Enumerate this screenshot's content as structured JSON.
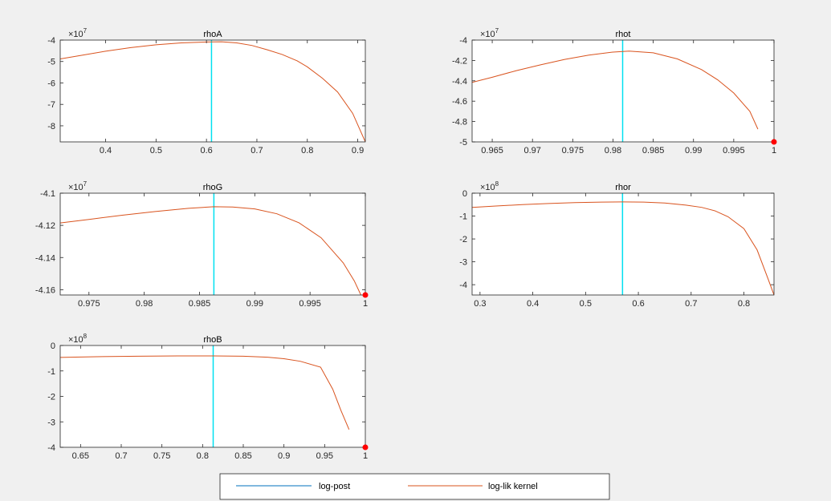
{
  "chart_data": [
    {
      "type": "line",
      "title": "rhoA",
      "y_exponent": "7",
      "xlim": [
        0.31,
        0.915
      ],
      "ylim": [
        -8.75,
        -4
      ],
      "xticks": [
        0.4,
        0.5,
        0.6,
        0.7,
        0.8,
        0.9
      ],
      "xtick_labels": [
        "0.4",
        "0.5",
        "0.6",
        "0.7",
        "0.8",
        "0.9"
      ],
      "yticks": [
        -8,
        -7,
        -6,
        -5,
        -4
      ],
      "ytick_labels": [
        "-8",
        "-7",
        "-6",
        "-5",
        "-4"
      ],
      "vline_x": 0.61,
      "series": [
        {
          "color": "#00e0f0",
          "x": [
            0.61,
            0.61
          ],
          "y": [
            -8.75,
            -4
          ]
        },
        {
          "color": "#d9531e",
          "x": [
            0.31,
            0.35,
            0.4,
            0.45,
            0.5,
            0.55,
            0.6,
            0.63,
            0.66,
            0.69,
            0.72,
            0.75,
            0.78,
            0.8,
            0.83,
            0.86,
            0.89,
            0.915
          ],
          "y": [
            -4.88,
            -4.72,
            -4.52,
            -4.35,
            -4.22,
            -4.13,
            -4.09,
            -4.08,
            -4.13,
            -4.25,
            -4.45,
            -4.67,
            -4.97,
            -5.25,
            -5.78,
            -6.42,
            -7.42,
            -8.75
          ]
        }
      ]
    },
    {
      "type": "line",
      "title": "rhot",
      "y_exponent": "7",
      "xlim": [
        0.9625,
        1.0
      ],
      "ylim": [
        -5,
        -4
      ],
      "xticks": [
        0.965,
        0.97,
        0.975,
        0.98,
        0.985,
        0.99,
        0.995,
        1.0
      ],
      "xtick_labels": [
        "0.965",
        "0.97",
        "0.975",
        "0.98",
        "0.985",
        "0.99",
        "0.995",
        "1"
      ],
      "yticks": [
        -5,
        -4.8,
        -4.6,
        -4.4,
        -4.2,
        -4
      ],
      "ytick_labels": [
        "-5",
        "-4.8",
        "-4.6",
        "-4.4",
        "-4.2",
        "-4"
      ],
      "vline_x": 0.9812,
      "marker": {
        "x": 1.0,
        "y": -5,
        "color": "#ff0000"
      },
      "series": [
        {
          "color": "#00e0f0",
          "x": [
            0.9812,
            0.9812
          ],
          "y": [
            -5,
            -4
          ]
        },
        {
          "color": "#d9531e",
          "x": [
            0.9625,
            0.965,
            0.968,
            0.971,
            0.974,
            0.977,
            0.98,
            0.982,
            0.985,
            0.988,
            0.991,
            0.993,
            0.995,
            0.997,
            0.998
          ],
          "y": [
            -4.415,
            -4.365,
            -4.3,
            -4.243,
            -4.19,
            -4.148,
            -4.118,
            -4.108,
            -4.125,
            -4.185,
            -4.29,
            -4.39,
            -4.52,
            -4.7,
            -4.875
          ]
        }
      ]
    },
    {
      "type": "line",
      "title": "rhoG",
      "y_exponent": "7",
      "xlim": [
        0.9724,
        1.0
      ],
      "ylim": [
        -4.1633,
        -4.1
      ],
      "xticks": [
        0.975,
        0.98,
        0.985,
        0.99,
        0.995,
        1.0
      ],
      "xtick_labels": [
        "0.975",
        "0.98",
        "0.985",
        "0.99",
        "0.995",
        "1"
      ],
      "yticks": [
        -4.16,
        -4.14,
        -4.12,
        -4.1
      ],
      "ytick_labels": [
        "-4.16",
        "-4.14",
        "-4.12",
        "-4.1"
      ],
      "vline_x": 0.9863,
      "marker": {
        "x": 1.0,
        "y": -4.1633,
        "color": "#ff0000"
      },
      "series": [
        {
          "color": "#00e0f0",
          "x": [
            0.9863,
            0.9863
          ],
          "y": [
            -4.1633,
            -4.1
          ]
        },
        {
          "color": "#d9531e",
          "x": [
            0.9724,
            0.975,
            0.978,
            0.981,
            0.984,
            0.9863,
            0.988,
            0.99,
            0.992,
            0.994,
            0.996,
            0.998,
            0.999,
            0.9996
          ],
          "y": [
            -4.1185,
            -4.1163,
            -4.1137,
            -4.1114,
            -4.1094,
            -4.1084,
            -4.1086,
            -4.1098,
            -4.1128,
            -4.1184,
            -4.1277,
            -4.1433,
            -4.1545,
            -4.1633
          ]
        }
      ]
    },
    {
      "type": "line",
      "title": "rhor",
      "y_exponent": "8",
      "xlim": [
        0.285,
        0.857
      ],
      "ylim": [
        -4.45,
        0
      ],
      "xticks": [
        0.3,
        0.4,
        0.5,
        0.6,
        0.7,
        0.8
      ],
      "xtick_labels": [
        "0.3",
        "0.4",
        "0.5",
        "0.6",
        "0.7",
        "0.8"
      ],
      "yticks": [
        -4,
        -3,
        -2,
        -1,
        0
      ],
      "ytick_labels": [
        "-4",
        "-3",
        "-2",
        "-1",
        "0"
      ],
      "vline_x": 0.57,
      "series": [
        {
          "color": "#00e0f0",
          "x": [
            0.57,
            0.57
          ],
          "y": [
            -4.45,
            0
          ]
        },
        {
          "color": "#d9531e",
          "x": [
            0.285,
            0.33,
            0.38,
            0.43,
            0.48,
            0.53,
            0.57,
            0.61,
            0.65,
            0.69,
            0.72,
            0.745,
            0.77,
            0.8,
            0.825,
            0.845,
            0.857
          ],
          "y": [
            -0.62,
            -0.56,
            -0.5,
            -0.45,
            -0.41,
            -0.39,
            -0.38,
            -0.39,
            -0.43,
            -0.52,
            -0.62,
            -0.77,
            -1.03,
            -1.55,
            -2.48,
            -3.7,
            -4.45
          ]
        }
      ]
    },
    {
      "type": "line",
      "title": "rhoB",
      "y_exponent": "8",
      "xlim": [
        0.625,
        1.0
      ],
      "ylim": [
        -4,
        0
      ],
      "xticks": [
        0.65,
        0.7,
        0.75,
        0.8,
        0.85,
        0.9,
        0.95,
        1.0
      ],
      "xtick_labels": [
        "0.65",
        "0.7",
        "0.75",
        "0.8",
        "0.85",
        "0.9",
        "0.95",
        "1"
      ],
      "yticks": [
        -4,
        -3,
        -2,
        -1,
        0
      ],
      "ytick_labels": [
        "-4",
        "-3",
        "-2",
        "-1",
        "0"
      ],
      "vline_x": 0.813,
      "marker": {
        "x": 1.0,
        "y": -4,
        "color": "#ff0000"
      },
      "series": [
        {
          "color": "#00e0f0",
          "x": [
            0.813,
            0.813
          ],
          "y": [
            -4,
            0
          ]
        },
        {
          "color": "#d9531e",
          "x": [
            0.625,
            0.67,
            0.72,
            0.77,
            0.813,
            0.85,
            0.88,
            0.9,
            0.92,
            0.945,
            0.96,
            0.97,
            0.98
          ],
          "y": [
            -0.47,
            -0.44,
            -0.42,
            -0.41,
            -0.41,
            -0.42,
            -0.46,
            -0.52,
            -0.62,
            -0.85,
            -1.72,
            -2.55,
            -3.3
          ]
        }
      ]
    }
  ],
  "legend": {
    "items": [
      {
        "label": "log-post",
        "color": "#0072bd"
      },
      {
        "label": "log-lik kernel",
        "color": "#d9531e"
      }
    ]
  }
}
